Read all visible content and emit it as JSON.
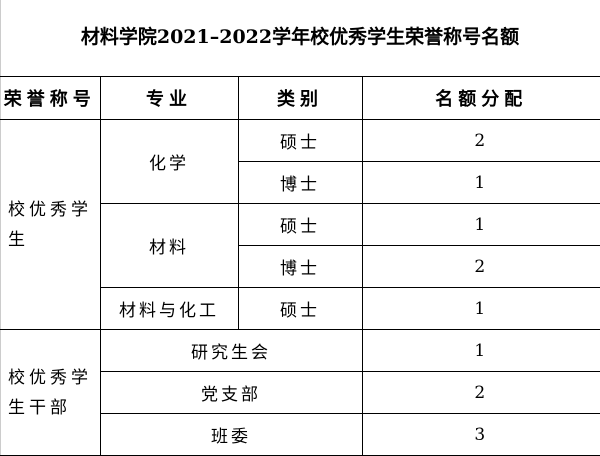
{
  "title": "材料学院2021–2022学年校优秀学生荣誉称号名额",
  "headers": [
    "荣誉称号",
    "专业",
    "类别",
    "名额分配"
  ],
  "groups": [
    {
      "honor": "校优秀学生",
      "majors": [
        {
          "major": "化学",
          "rows": [
            {
              "type": "硕士",
              "quota": "2"
            },
            {
              "type": "博士",
              "quota": "1"
            }
          ]
        },
        {
          "major": "材料",
          "rows": [
            {
              "type": "硕士",
              "quota": "1"
            },
            {
              "type": "博士",
              "quota": "2"
            }
          ]
        },
        {
          "major": "材料与化工",
          "rows": [
            {
              "type": "硕士",
              "quota": "1"
            }
          ]
        }
      ]
    },
    {
      "honor": "校优秀学生干部",
      "items": [
        {
          "name": "研究生会",
          "quota": "1"
        },
        {
          "name": "党支部",
          "quota": "2"
        },
        {
          "name": "班委",
          "quota": "3"
        }
      ]
    }
  ]
}
